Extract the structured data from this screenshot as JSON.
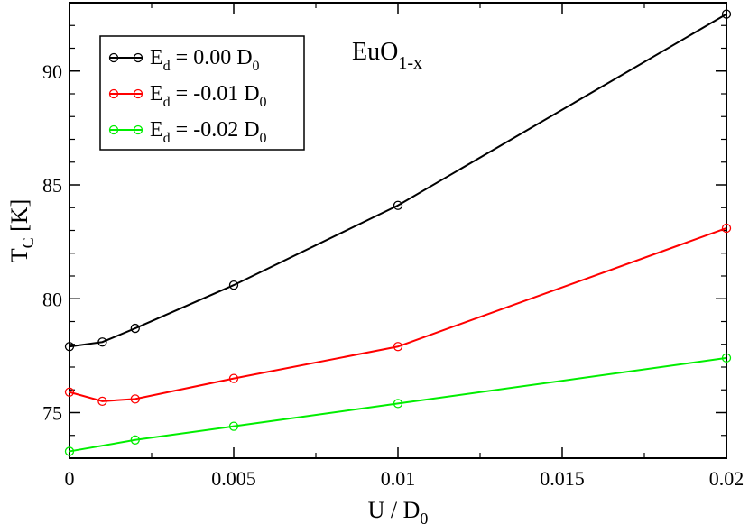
{
  "chart_data": {
    "type": "line",
    "xlabel": {
      "main": "U / D",
      "sub": "0"
    },
    "ylabel": {
      "main": "T",
      "sub": "C",
      "suffix": " [K]"
    },
    "annotation": {
      "main": "EuO",
      "sub": "1-x"
    },
    "xlim": [
      0,
      0.02
    ],
    "ylim": [
      73,
      93
    ],
    "xticks": [
      0,
      0.005,
      0.01,
      0.015,
      0.02
    ],
    "xtick_labels": [
      "0",
      "0.005",
      "0.01",
      "0.015",
      "0.02"
    ],
    "yticks": [
      75,
      80,
      85,
      90
    ],
    "ytick_labels": [
      "75",
      "80",
      "85",
      "90"
    ],
    "grid": false,
    "legend_position": "top-left",
    "series": [
      {
        "label": {
          "main": "E",
          "sub": "d",
          "value": " =  0.00 D",
          "sub2": "0"
        },
        "color": "#000000",
        "x": [
          0,
          0.001,
          0.002,
          0.005,
          0.01,
          0.02
        ],
        "y": [
          77.9,
          78.1,
          78.7,
          80.6,
          84.1,
          92.5
        ]
      },
      {
        "label": {
          "main": "E",
          "sub": "d",
          "value": " = -0.01 D",
          "sub2": "0"
        },
        "color": "#ff0000",
        "x": [
          0,
          0.001,
          0.002,
          0.005,
          0.01,
          0.02
        ],
        "y": [
          75.9,
          75.5,
          75.6,
          76.5,
          77.9,
          83.1
        ]
      },
      {
        "label": {
          "main": "E",
          "sub": "d",
          "value": " = -0.02 D",
          "sub2": "0"
        },
        "color": "#00ee00",
        "x": [
          0,
          0.002,
          0.005,
          0.01,
          0.02
        ],
        "y": [
          73.3,
          73.8,
          74.4,
          75.4,
          77.4
        ]
      }
    ]
  }
}
